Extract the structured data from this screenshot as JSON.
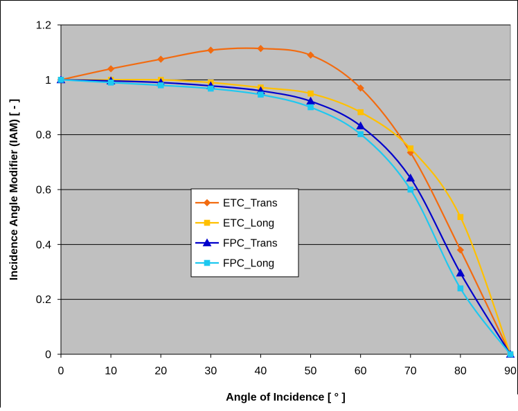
{
  "chart_data": {
    "type": "line",
    "title": "",
    "xlabel": "Angle of Incidence [ ° ]",
    "ylabel": "Incidence Angle Modifier (IAM) [ - ]",
    "x": [
      0,
      10,
      20,
      30,
      40,
      50,
      60,
      70,
      80,
      90
    ],
    "xlim": [
      0,
      90
    ],
    "ylim": [
      0,
      1.2
    ],
    "x_ticks": [
      "0",
      "10",
      "20",
      "30",
      "40",
      "50",
      "60",
      "70",
      "80",
      "90"
    ],
    "y_ticks": [
      "0",
      "0.2",
      "0.4",
      "0.6",
      "0.8",
      "1",
      "1.2"
    ],
    "grid": "horizontal",
    "legend_position": "center-left",
    "plot_background": "#c0c0c0",
    "series": [
      {
        "name": "ETC_Trans",
        "color": "#f26b10",
        "marker": "diamond",
        "values": [
          1.0,
          1.04,
          1.075,
          1.108,
          1.114,
          1.09,
          0.97,
          0.735,
          0.38,
          0.0
        ]
      },
      {
        "name": "ETC_Long",
        "color": "#ffc000",
        "marker": "square",
        "values": [
          1.0,
          1.0,
          1.0,
          0.99,
          0.972,
          0.95,
          0.882,
          0.75,
          0.5,
          0.0
        ]
      },
      {
        "name": "FPC_Trans",
        "color": "#0000cc",
        "marker": "triangle",
        "values": [
          1.0,
          0.996,
          0.99,
          0.978,
          0.96,
          0.922,
          0.832,
          0.642,
          0.296,
          0.0
        ]
      },
      {
        "name": "FPC_Long",
        "color": "#1ec8f0",
        "marker": "square",
        "values": [
          1.0,
          0.99,
          0.98,
          0.968,
          0.946,
          0.9,
          0.802,
          0.6,
          0.24,
          0.0
        ]
      }
    ]
  }
}
